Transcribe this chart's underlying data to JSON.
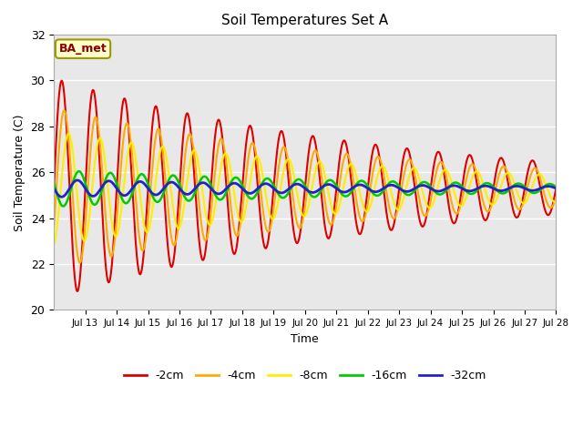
{
  "title": "Soil Temperatures Set A",
  "xlabel": "Time",
  "ylabel": "Soil Temperature (C)",
  "ylim": [
    20,
    32
  ],
  "annotation": "BA_met",
  "series_colors": {
    "-2cm": "#dd0000",
    "-4cm": "#ffaa00",
    "-8cm": "#ffee00",
    "-16cm": "#00cc00",
    "-32cm": "#2222cc"
  },
  "series_order": [
    "-2cm",
    "-4cm",
    "-8cm",
    "-16cm",
    "-32cm"
  ],
  "bg_color": "#e8e8e8",
  "fig_bg": "#ffffff",
  "grid_color": "#ffffff",
  "start_day": 12,
  "end_day": 28,
  "mean_temp": 25.3,
  "amplitudes": {
    "-2cm": 4.8,
    "-4cm": 3.5,
    "-8cm": 2.5,
    "-16cm": 0.8,
    "-32cm": 0.38
  },
  "phase_shifts": {
    "-2cm": 0.0,
    "-4cm": 0.08,
    "-8cm": 0.22,
    "-16cm": 0.55,
    "-32cm": 1.5
  },
  "decay_rate": 0.09,
  "period": 1.0,
  "n_points": 4000,
  "linewidths": {
    "-2cm": 1.5,
    "-4cm": 1.5,
    "-8cm": 1.5,
    "-16cm": 1.8,
    "-32cm": 2.0
  },
  "yticks": [
    20,
    22,
    24,
    26,
    28,
    30,
    32
  ],
  "tick_days": [
    13,
    14,
    15,
    16,
    17,
    18,
    19,
    20,
    21,
    22,
    23,
    24,
    25,
    26,
    27,
    28
  ]
}
